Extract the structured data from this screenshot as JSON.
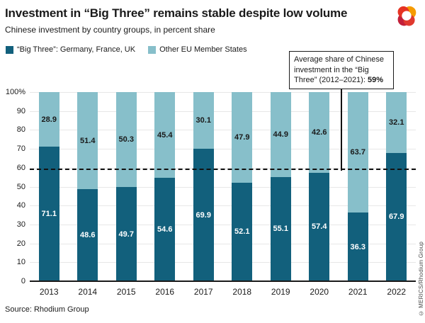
{
  "header": {
    "title": "Investment in “Big Three” remains stable despite low volume",
    "subtitle": "Chinese investment by country groups, in percent share",
    "logo": "merics-logo"
  },
  "legend": {
    "items": [
      {
        "label": "“Big Three”: Germany, France, UK",
        "color": "#12607C"
      },
      {
        "label": "Other EU Member States",
        "color": "#87BFCA"
      }
    ]
  },
  "annotation": {
    "text": "Average share of Chinese investment in the “Big Three” (2012–2021): ",
    "value": "59%"
  },
  "chart_data": {
    "type": "bar",
    "stacked": true,
    "categories": [
      "2013",
      "2014",
      "2015",
      "2016",
      "2017",
      "2018",
      "2019",
      "2020",
      "2021",
      "2022"
    ],
    "series": [
      {
        "name": "“Big Three”: Germany, France, UK",
        "color": "#12607C",
        "label_color": "#ffffff",
        "values": [
          71.1,
          48.6,
          49.7,
          54.6,
          69.9,
          52.1,
          55.1,
          57.4,
          36.3,
          67.9
        ]
      },
      {
        "name": "Other EU Member States",
        "color": "#87BFCA",
        "label_color": "#1a1a1a",
        "values": [
          28.9,
          51.4,
          50.3,
          45.4,
          30.1,
          47.9,
          44.9,
          42.6,
          63.7,
          32.1
        ]
      }
    ],
    "ylim": [
      0,
      100
    ],
    "yticks": [
      {
        "label": "100%",
        "value": 100
      },
      {
        "label": "90",
        "value": 90
      },
      {
        "label": "80",
        "value": 80
      },
      {
        "label": "70",
        "value": 70
      },
      {
        "label": "60",
        "value": 60
      },
      {
        "label": "50",
        "value": 50
      },
      {
        "label": "40",
        "value": 40
      },
      {
        "label": "30",
        "value": 30
      },
      {
        "label": "20",
        "value": 20
      },
      {
        "label": "10",
        "value": 10
      },
      {
        "label": "0",
        "value": 0
      }
    ],
    "reference_line": {
      "value": 59,
      "style": "dashed",
      "color": "#111111"
    },
    "grid": true,
    "legend_position": "top-left"
  },
  "footer": {
    "source": "Source: Rhodium Group",
    "copyright": "© MERICS/Rhodium Group"
  },
  "colors": {
    "big_three": "#12607C",
    "other_eu": "#87BFCA",
    "gridline": "#e7e7e7",
    "text": "#1a1a1a"
  }
}
